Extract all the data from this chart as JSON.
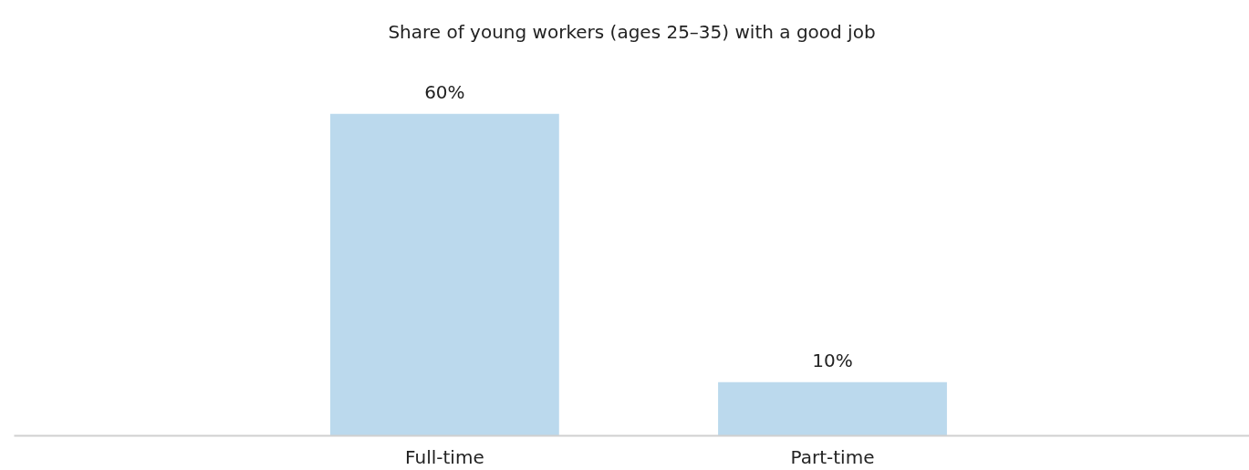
{
  "chart_data": {
    "type": "bar",
    "title": "Share of young workers (ages 25–35) with a good job",
    "categories": [
      "Full-time",
      "Part-time"
    ],
    "values": [
      60,
      10
    ],
    "color": "#bbd9ed",
    "value_labels": [
      "60%",
      "10%"
    ],
    "grid": false
  }
}
